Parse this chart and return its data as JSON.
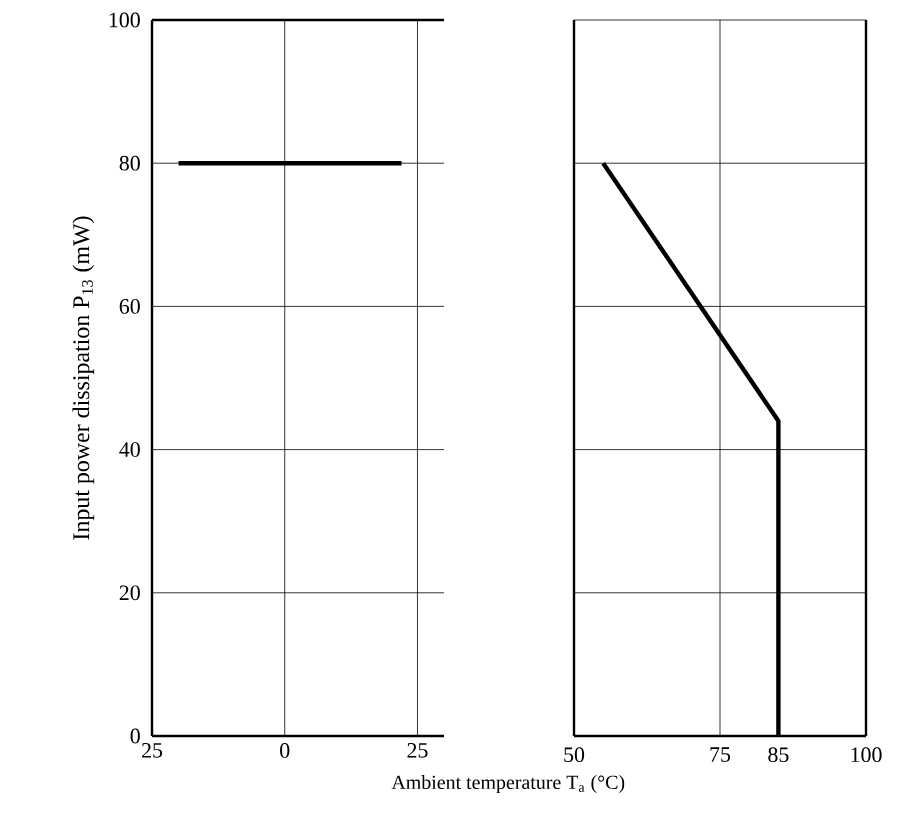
{
  "chart_data": [
    {
      "type": "line",
      "xlabel": "Ambient temperature T$_{a}$ (°C)",
      "ylabel": "Input power dissipation P$_{13}$ (mW)",
      "xlim": [
        -25,
        30
      ],
      "xticks": [
        {
          "value": -25,
          "label": "25"
        },
        0,
        25
      ],
      "ylim": [
        0,
        100
      ],
      "yticks": [
        0,
        20,
        40,
        60,
        80,
        100
      ],
      "grid": "y",
      "ref_lines": [
        {
          "axis": "x",
          "value": 0
        },
        {
          "axis": "x",
          "value": 25
        }
      ],
      "series": [
        {
          "color": "#000000",
          "x": [
            -20,
            22
          ],
          "values": [
            80,
            80
          ]
        }
      ]
    },
    {
      "type": "line",
      "xlim": [
        50,
        100
      ],
      "xticks": [
        50,
        75,
        85,
        100
      ],
      "ylim": [
        0,
        100
      ],
      "yticks": [
        0,
        20,
        40,
        60,
        80,
        100
      ],
      "grid": "y",
      "tick_labels": "x",
      "ref_lines": [
        {
          "axis": "x",
          "value": 75
        }
      ],
      "series": [
        {
          "color": "#000000",
          "x": [
            55,
            85,
            85
          ],
          "values": [
            80,
            44,
            0
          ]
        }
      ]
    }
  ]
}
